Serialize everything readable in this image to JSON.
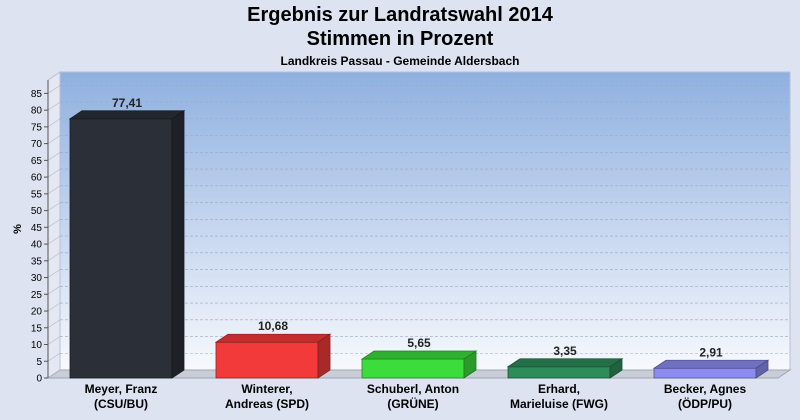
{
  "chart_data": {
    "type": "bar",
    "title": "Ergebnis zur Landratswahl 2014",
    "subtitle": "Stimmen in Prozent",
    "caption": "Landkreis Passau - Gemeinde Aldersbach",
    "ylabel": "%",
    "xlabel": "",
    "ylim": [
      0,
      89
    ],
    "yticks": [
      0,
      5,
      10,
      15,
      20,
      25,
      30,
      35,
      40,
      45,
      50,
      55,
      60,
      65,
      70,
      75,
      80,
      85
    ],
    "grid": true,
    "categories": [
      [
        "Meyer, Franz",
        "(CSU/BU)"
      ],
      [
        "Winterer,",
        "Andreas (SPD)"
      ],
      [
        "Schuberl, Anton",
        "(GRÜNE)"
      ],
      [
        "Erhard,",
        "Marieluise (FWG)"
      ],
      [
        "Becker, Agnes",
        "(ÖDP/PU)"
      ]
    ],
    "values": [
      77.41,
      10.68,
      5.65,
      3.35,
      2.91
    ],
    "value_labels": [
      "77,41",
      "10,68",
      "5,65",
      "3,35",
      "2,91"
    ],
    "colors": [
      "#2b2f38",
      "#f23a3a",
      "#3cdc3c",
      "#2e8b5a",
      "#8c8cf0"
    ]
  }
}
